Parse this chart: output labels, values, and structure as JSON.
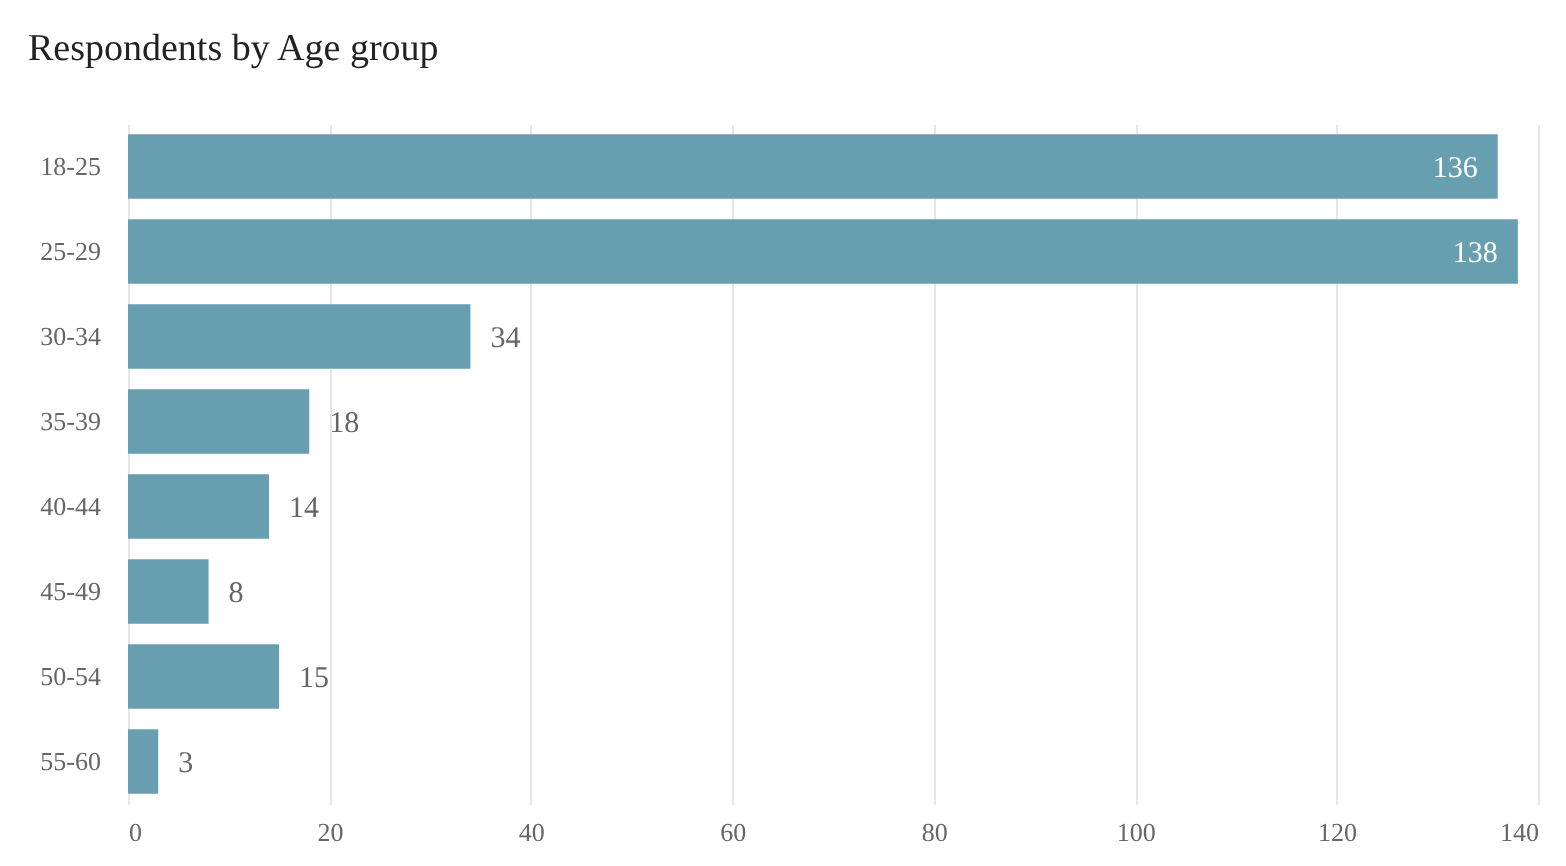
{
  "chart_data": {
    "type": "bar",
    "orientation": "horizontal",
    "title": "Respondents by Age group",
    "categories": [
      "18-25",
      "25-29",
      "30-34",
      "35-39",
      "40-44",
      "45-49",
      "50-54",
      "55-60"
    ],
    "values": [
      136,
      138,
      34,
      18,
      14,
      8,
      15,
      3
    ],
    "color": "#679fb0",
    "xlim": [
      0,
      140
    ],
    "xticks": [
      0,
      20,
      40,
      60,
      80,
      100,
      120,
      140
    ],
    "grid": "x",
    "data_labels": true
  }
}
